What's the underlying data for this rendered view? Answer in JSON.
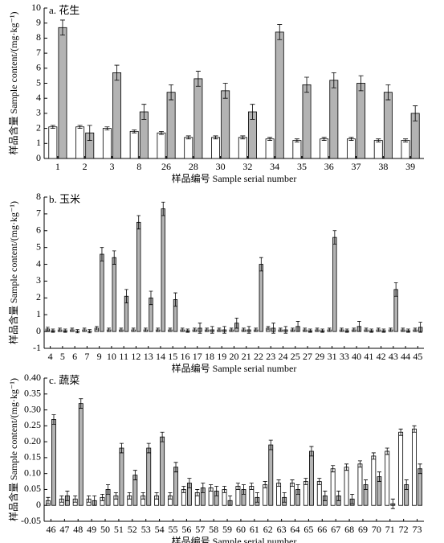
{
  "chart_data": [
    {
      "type": "bar",
      "title": "a. 花生",
      "ylabel": "样品含量 Sample content/(mg·kg⁻¹)",
      "xlabel": "样品编号 Sample serial number",
      "categories": [
        "1",
        "2",
        "3",
        "8",
        "26",
        "28",
        "30",
        "32",
        "34",
        "35",
        "36",
        "37",
        "38",
        "39"
      ],
      "series": [
        {
          "color": "#ffffff",
          "values": [
            2.1,
            2.1,
            2.0,
            1.8,
            1.7,
            1.4,
            1.4,
            1.4,
            1.3,
            1.2,
            1.3,
            1.3,
            1.2,
            1.2
          ],
          "errors": [
            0.1,
            0.1,
            0.1,
            0.1,
            0.1,
            0.1,
            0.1,
            0.1,
            0.1,
            0.1,
            0.1,
            0.1,
            0.1,
            0.1
          ]
        },
        {
          "color": "#b3b3b3",
          "values": [
            8.7,
            1.7,
            5.7,
            3.1,
            4.4,
            5.3,
            4.5,
            3.1,
            8.4,
            4.9,
            5.2,
            5.0,
            4.4,
            3.0
          ],
          "errors": [
            0.5,
            0.5,
            0.5,
            0.5,
            0.5,
            0.5,
            0.5,
            0.5,
            0.5,
            0.5,
            0.5,
            0.5,
            0.5,
            0.5
          ]
        }
      ],
      "ylim": [
        0,
        10
      ],
      "yticks": [
        0,
        1,
        2,
        3,
        4,
        5,
        6,
        7,
        8,
        9,
        10
      ]
    },
    {
      "type": "bar",
      "title": "b. 玉米",
      "ylabel": "样品含量 Sample content/(mg·kg⁻¹)",
      "xlabel": "样品编号 Sample serial number",
      "categories": [
        "4",
        "5",
        "6",
        "7",
        "9",
        "10",
        "11",
        "12",
        "13",
        "14",
        "15",
        "16",
        "17",
        "18",
        "19",
        "20",
        "21",
        "22",
        "23",
        "24",
        "25",
        "27",
        "29",
        "31",
        "33",
        "40",
        "41",
        "42",
        "43",
        "44",
        "45"
      ],
      "series": [
        {
          "color": "#ffffff",
          "values": [
            0.15,
            0.1,
            0.1,
            0.1,
            0.2,
            0.1,
            0.1,
            0.1,
            0.1,
            0.1,
            0.1,
            0.1,
            0.1,
            0.1,
            0.1,
            0.1,
            0.1,
            0.1,
            0.2,
            0.1,
            0.1,
            0.1,
            0.1,
            0.1,
            0.1,
            0.1,
            0.1,
            0.1,
            0.1,
            0.1,
            0.1
          ],
          "errors": [
            0.1,
            0.1,
            0.1,
            0.1,
            0.1,
            0.1,
            0.1,
            0.1,
            0.1,
            0.1,
            0.1,
            0.1,
            0.1,
            0.1,
            0.1,
            0.1,
            0.1,
            0.1,
            0.1,
            0.1,
            0.1,
            0.1,
            0.1,
            0.1,
            0.1,
            0.1,
            0.1,
            0.1,
            0.1,
            0.1,
            0.1
          ]
        },
        {
          "color": "#b3b3b3",
          "values": [
            0.05,
            0.05,
            0.02,
            0.02,
            4.6,
            4.4,
            2.1,
            6.5,
            2.0,
            7.3,
            1.9,
            0.05,
            0.2,
            0.1,
            0.1,
            0.5,
            0.1,
            4.0,
            0.2,
            0.1,
            0.3,
            0.05,
            0.05,
            5.6,
            0.05,
            0.3,
            0.05,
            0.05,
            2.5,
            0.05,
            0.25
          ],
          "errors": [
            0.1,
            0.1,
            0.1,
            0.1,
            0.4,
            0.4,
            0.4,
            0.4,
            0.4,
            0.4,
            0.4,
            0.1,
            0.3,
            0.2,
            0.2,
            0.3,
            0.2,
            0.4,
            0.3,
            0.2,
            0.3,
            0.1,
            0.1,
            0.4,
            0.1,
            0.3,
            0.1,
            0.1,
            0.4,
            0.1,
            0.3
          ]
        }
      ],
      "ylim": [
        -1,
        8
      ],
      "yticks": [
        -1,
        0,
        1,
        2,
        3,
        4,
        5,
        6,
        7,
        8
      ]
    },
    {
      "type": "bar",
      "title": "c. 蔬菜",
      "ylabel": "样品含量 Sample content/(mg·kg⁻¹)",
      "xlabel": "样品编号 Sample serial number",
      "categories": [
        "46",
        "47",
        "48",
        "49",
        "50",
        "51",
        "52",
        "53",
        "54",
        "55",
        "56",
        "57",
        "58",
        "59",
        "60",
        "61",
        "62",
        "63",
        "64",
        "65",
        "66",
        "67",
        "68",
        "69",
        "70",
        "71",
        "72",
        "73"
      ],
      "series": [
        {
          "color": "#ffffff",
          "values": [
            0.015,
            0.02,
            0.02,
            0.02,
            0.025,
            0.03,
            0.03,
            0.03,
            0.03,
            0.03,
            0.05,
            0.04,
            0.055,
            0.05,
            0.06,
            0.06,
            0.065,
            0.07,
            0.07,
            0.075,
            0.075,
            0.115,
            0.12,
            0.13,
            0.155,
            0.17,
            0.23,
            0.24
          ],
          "errors": [
            0.01,
            0.01,
            0.01,
            0.01,
            0.01,
            0.01,
            0.01,
            0.01,
            0.01,
            0.01,
            0.01,
            0.01,
            0.01,
            0.01,
            0.01,
            0.01,
            0.01,
            0.01,
            0.01,
            0.01,
            0.01,
            0.01,
            0.01,
            0.01,
            0.01,
            0.01,
            0.01,
            0.01
          ]
        },
        {
          "color": "#b3b3b3",
          "values": [
            0.27,
            0.03,
            0.32,
            0.015,
            0.05,
            0.18,
            0.095,
            0.18,
            0.215,
            0.12,
            0.07,
            0.055,
            0.045,
            0.015,
            0.05,
            0.025,
            0.19,
            0.025,
            0.05,
            0.17,
            0.03,
            0.03,
            0.02,
            0.065,
            0.09,
            0.005,
            0.065,
            0.115
          ],
          "errors": [
            0.015,
            0.015,
            0.015,
            0.015,
            0.015,
            0.015,
            0.015,
            0.015,
            0.015,
            0.015,
            0.015,
            0.015,
            0.015,
            0.015,
            0.015,
            0.015,
            0.015,
            0.015,
            0.015,
            0.015,
            0.015,
            0.015,
            0.015,
            0.015,
            0.015,
            0.015,
            0.015,
            0.015
          ]
        }
      ],
      "ylim": [
        -0.05,
        0.4
      ],
      "yticks": [
        -0.05,
        0,
        0.05,
        {
          "value": 0.1,
          "label": "0.10"
        },
        0.15,
        {
          "value": 0.2,
          "label": "0.20"
        },
        0.25,
        {
          "value": 0.3,
          "label": "0.30"
        },
        0.35,
        {
          "value": 0.4,
          "label": "0.40"
        }
      ]
    }
  ]
}
